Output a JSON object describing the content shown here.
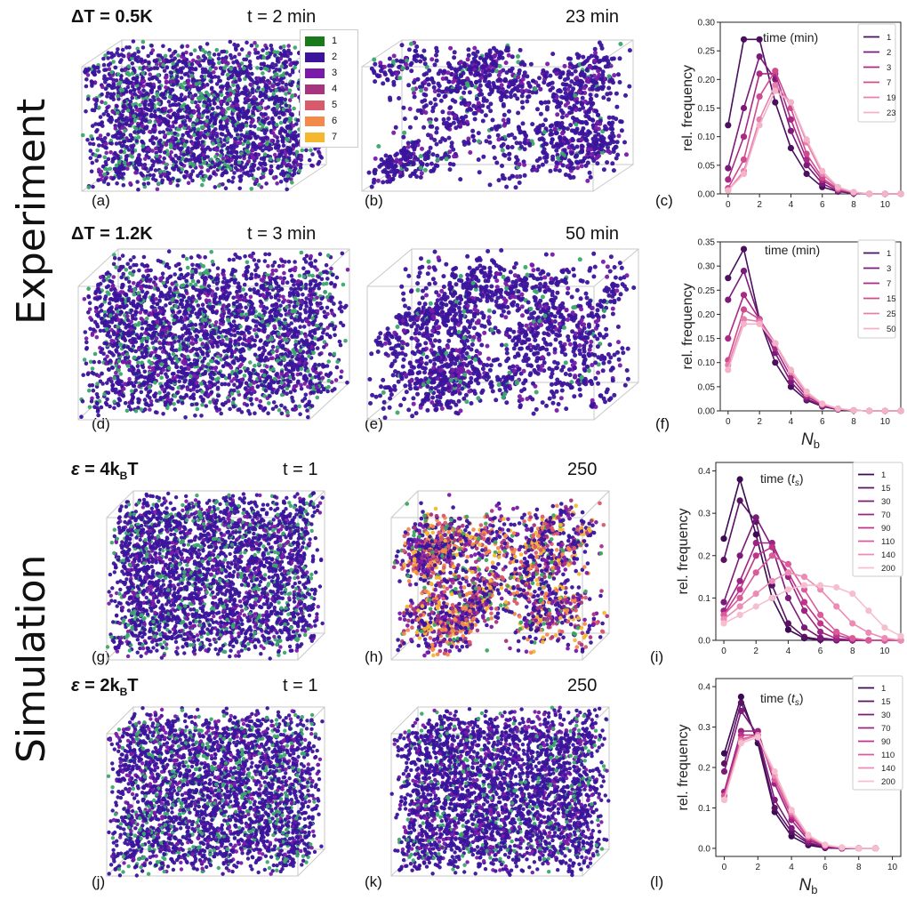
{
  "sections": {
    "experiment": "Experiment",
    "simulation": "Simulation"
  },
  "rows": [
    {
      "cond_prefix": "ΔT",
      "cond_rest": " = 0.5K",
      "t_left": "t = 2 min",
      "t_right": "23 min",
      "lbl_a": "(a)",
      "lbl_b": "(b)",
      "lbl_c": "(c)"
    },
    {
      "cond_prefix": "ΔT",
      "cond_rest": " = 1.2K",
      "t_left": "t = 3 min",
      "t_right": "50 min",
      "lbl_a": "(d)",
      "lbl_b": "(e)",
      "lbl_c": "(f)"
    },
    {
      "cond_prefix": "ε",
      "cond_rest": " = 4k",
      "cond_sub": "B",
      "cond_tail": "T",
      "t_left": "t = 1",
      "t_right": "250",
      "lbl_a": "(g)",
      "lbl_b": "(h)",
      "lbl_c": "(i)"
    },
    {
      "cond_prefix": "ε",
      "cond_rest": " = 2k",
      "cond_sub": "B",
      "cond_tail": "T",
      "t_left": "t = 1",
      "t_right": "250",
      "lbl_a": "(j)",
      "lbl_b": "(k)",
      "lbl_c": "(l)"
    }
  ],
  "bond_legend": {
    "items": [
      "1",
      "2",
      "3",
      "4",
      "5",
      "6",
      "7"
    ],
    "colors": [
      "#1a7a1a",
      "#3a149c",
      "#7a1aa8",
      "#a8347f",
      "#d95a6a",
      "#f48a4a",
      "#f5b72e"
    ]
  },
  "chart_data": [
    {
      "type": "line",
      "panel": "(c)",
      "legend_title": "time (min)",
      "ylabel": "rel. frequency",
      "xlabel": "",
      "ylim": [
        0,
        0.3
      ],
      "yticks": [
        "0.00",
        "0.05",
        "0.10",
        "0.15",
        "0.20",
        "0.25",
        "0.30"
      ],
      "xlim": [
        -0.5,
        11
      ],
      "xticks": [
        "0",
        "2",
        "4",
        "6",
        "8",
        "10"
      ],
      "x": [
        0,
        1,
        2,
        3,
        4,
        5,
        6,
        7,
        8,
        9,
        10,
        11
      ],
      "series": [
        {
          "name": "1",
          "color": "#4a0f5e",
          "values": [
            0.12,
            0.27,
            0.27,
            0.16,
            0.08,
            0.035,
            0.012,
            0.004,
            0.001,
            0,
            0,
            0
          ]
        },
        {
          "name": "2",
          "color": "#7b1a78",
          "values": [
            0.045,
            0.15,
            0.24,
            0.2,
            0.11,
            0.05,
            0.018,
            0.005,
            0.001,
            0,
            0,
            0
          ]
        },
        {
          "name": "3",
          "color": "#a92a84",
          "values": [
            0.025,
            0.1,
            0.21,
            0.21,
            0.13,
            0.06,
            0.024,
            0.007,
            0.002,
            0,
            0,
            0
          ]
        },
        {
          "name": "7",
          "color": "#cf4a8e",
          "values": [
            0.01,
            0.06,
            0.17,
            0.215,
            0.15,
            0.07,
            0.028,
            0.008,
            0.002,
            0,
            0,
            0
          ]
        },
        {
          "name": "19",
          "color": "#e77fad",
          "values": [
            0.006,
            0.04,
            0.13,
            0.19,
            0.16,
            0.09,
            0.035,
            0.01,
            0.003,
            0,
            0,
            0
          ]
        },
        {
          "name": "23",
          "color": "#f3b3c8",
          "values": [
            0.006,
            0.035,
            0.12,
            0.18,
            0.16,
            0.095,
            0.04,
            0.012,
            0.003,
            0,
            0,
            0
          ]
        }
      ]
    },
    {
      "type": "line",
      "panel": "(f)",
      "legend_title": "time (min)",
      "ylabel": "rel. frequency",
      "xlabel": "N_b",
      "ylim": [
        0,
        0.35
      ],
      "yticks": [
        "0.00",
        "0.05",
        "0.10",
        "0.15",
        "0.20",
        "0.25",
        "0.30",
        "0.35"
      ],
      "xlim": [
        -0.5,
        11
      ],
      "xticks": [
        "0",
        "2",
        "4",
        "6",
        "8",
        "10"
      ],
      "x": [
        0,
        1,
        2,
        3,
        4,
        5,
        6,
        7,
        8,
        9,
        10,
        11
      ],
      "series": [
        {
          "name": "1",
          "color": "#4a0f5e",
          "values": [
            0.275,
            0.335,
            0.19,
            0.1,
            0.05,
            0.022,
            0.009,
            0.003,
            0.001,
            0,
            0,
            0
          ]
        },
        {
          "name": "3",
          "color": "#7b1a78",
          "values": [
            0.23,
            0.29,
            0.19,
            0.12,
            0.06,
            0.025,
            0.01,
            0.003,
            0.001,
            0,
            0,
            0
          ]
        },
        {
          "name": "7",
          "color": "#a92a84",
          "values": [
            0.15,
            0.24,
            0.19,
            0.13,
            0.07,
            0.03,
            0.012,
            0.004,
            0.001,
            0,
            0,
            0
          ]
        },
        {
          "name": "15",
          "color": "#cf4a8e",
          "values": [
            0.105,
            0.21,
            0.19,
            0.14,
            0.08,
            0.035,
            0.013,
            0.004,
            0.001,
            0,
            0,
            0
          ]
        },
        {
          "name": "25",
          "color": "#e77fad",
          "values": [
            0.095,
            0.19,
            0.185,
            0.14,
            0.08,
            0.035,
            0.014,
            0.004,
            0.001,
            0,
            0,
            0
          ]
        },
        {
          "name": "50",
          "color": "#f3b3c8",
          "values": [
            0.085,
            0.18,
            0.18,
            0.14,
            0.085,
            0.04,
            0.015,
            0.005,
            0.001,
            0,
            0,
            0
          ]
        }
      ]
    },
    {
      "type": "line",
      "panel": "(i)",
      "legend_title": "time (t_s)",
      "ylabel": "rel. frequency",
      "xlabel": "",
      "ylim": [
        0,
        0.42
      ],
      "yticks": [
        "0.0",
        "0.1",
        "0.2",
        "0.3",
        "0.4"
      ],
      "xlim": [
        -0.5,
        11
      ],
      "xticks": [
        "0",
        "2",
        "4",
        "6",
        "8",
        "10"
      ],
      "x": [
        0,
        1,
        2,
        3,
        4,
        5,
        6,
        7,
        8,
        9,
        10,
        11
      ],
      "series": [
        {
          "name": "1",
          "color": "#3b0a52",
          "values": [
            0.24,
            0.38,
            0.25,
            0.1,
            0.025,
            0.005,
            0.001,
            0,
            0,
            0,
            0,
            0
          ]
        },
        {
          "name": "15",
          "color": "#5a1263",
          "values": [
            0.19,
            0.33,
            0.28,
            0.13,
            0.04,
            0.008,
            0.002,
            0,
            0,
            0,
            0,
            0
          ]
        },
        {
          "name": "30",
          "color": "#7b1a78",
          "values": [
            0.09,
            0.2,
            0.29,
            0.22,
            0.1,
            0.03,
            0.006,
            0.001,
            0,
            0,
            0,
            0
          ]
        },
        {
          "name": "70",
          "color": "#9d2383",
          "values": [
            0.07,
            0.14,
            0.23,
            0.23,
            0.15,
            0.07,
            0.02,
            0.004,
            0.001,
            0,
            0,
            0
          ]
        },
        {
          "name": "90",
          "color": "#bf3489",
          "values": [
            0.06,
            0.12,
            0.2,
            0.22,
            0.16,
            0.09,
            0.04,
            0.012,
            0.003,
            0,
            0,
            0
          ]
        },
        {
          "name": "110",
          "color": "#db5a9a",
          "values": [
            0.06,
            0.1,
            0.16,
            0.2,
            0.18,
            0.12,
            0.06,
            0.02,
            0.005,
            0,
            0,
            0
          ]
        },
        {
          "name": "140",
          "color": "#ec8bb4",
          "values": [
            0.05,
            0.08,
            0.11,
            0.14,
            0.16,
            0.15,
            0.12,
            0.08,
            0.04,
            0.018,
            0.005,
            0
          ]
        },
        {
          "name": "200",
          "color": "#f6bfcf",
          "values": [
            0.04,
            0.06,
            0.08,
            0.1,
            0.12,
            0.13,
            0.13,
            0.125,
            0.11,
            0.07,
            0.03,
            0.01
          ]
        }
      ]
    },
    {
      "type": "line",
      "panel": "(l)",
      "legend_title": "time (t_s)",
      "ylabel": "rel. frequency",
      "xlabel": "N_b",
      "ylim": [
        -0.02,
        0.42
      ],
      "yticks": [
        "0.0",
        "0.1",
        "0.2",
        "0.3",
        "0.4"
      ],
      "xlim": [
        -0.5,
        10.5
      ],
      "xticks": [
        "0",
        "2",
        "4",
        "6",
        "8",
        "10"
      ],
      "x": [
        0,
        1,
        2,
        3,
        4,
        5,
        6,
        7,
        8,
        9
      ],
      "series": [
        {
          "name": "1",
          "color": "#3b0a52",
          "values": [
            0.235,
            0.375,
            0.26,
            0.09,
            0.03,
            0.008,
            0.001,
            0,
            0,
            0
          ]
        },
        {
          "name": "15",
          "color": "#5a1263",
          "values": [
            0.21,
            0.36,
            0.27,
            0.1,
            0.04,
            0.012,
            0.002,
            0,
            0,
            0
          ]
        },
        {
          "name": "30",
          "color": "#7b1a78",
          "values": [
            0.19,
            0.34,
            0.28,
            0.12,
            0.05,
            0.015,
            0.003,
            0,
            0,
            0
          ]
        },
        {
          "name": "70",
          "color": "#9d2383",
          "values": [
            0.14,
            0.29,
            0.29,
            0.16,
            0.07,
            0.02,
            0.005,
            0.001,
            0,
            0
          ]
        },
        {
          "name": "90",
          "color": "#bf3489",
          "values": [
            0.13,
            0.28,
            0.28,
            0.17,
            0.08,
            0.025,
            0.006,
            0.001,
            0,
            0
          ]
        },
        {
          "name": "110",
          "color": "#db5a9a",
          "values": [
            0.13,
            0.27,
            0.28,
            0.17,
            0.085,
            0.028,
            0.007,
            0.002,
            0,
            0
          ]
        },
        {
          "name": "140",
          "color": "#ec8bb4",
          "values": [
            0.12,
            0.265,
            0.28,
            0.18,
            0.09,
            0.03,
            0.008,
            0.002,
            0,
            0
          ]
        },
        {
          "name": "200",
          "color": "#f6bfcf",
          "values": [
            0.12,
            0.26,
            0.275,
            0.19,
            0.095,
            0.033,
            0.009,
            0.002,
            0,
            0
          ]
        }
      ]
    }
  ]
}
